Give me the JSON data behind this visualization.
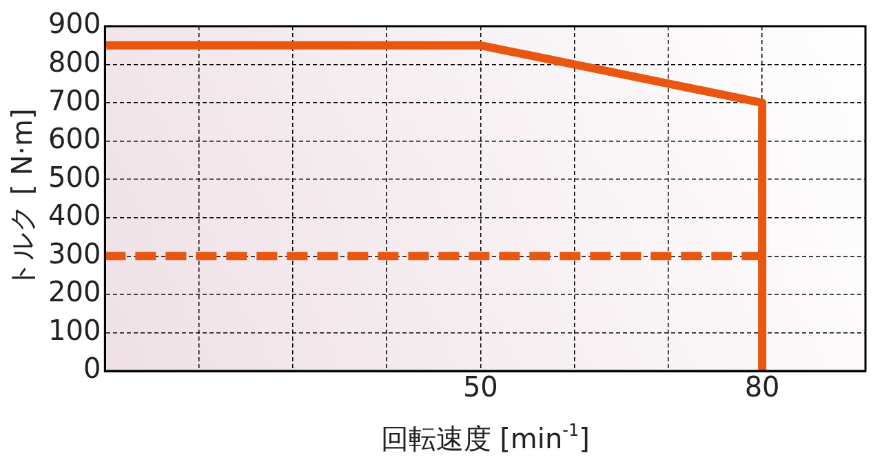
{
  "chart_data": {
    "type": "line",
    "xlabel": "回転速度 [min$^{-1}$]",
    "ylabel": "トルク [ N·m]",
    "xlim": [
      10,
      91
    ],
    "xticks": [
      {
        "value": 20,
        "label": null
      },
      {
        "value": 30,
        "label": null
      },
      {
        "value": 40,
        "label": null
      },
      50,
      {
        "value": 60,
        "label": null
      },
      {
        "value": 70,
        "label": null
      },
      80
    ],
    "ylim": [
      0,
      900
    ],
    "yticks": [
      0,
      100,
      200,
      300,
      400,
      500,
      600,
      700,
      800,
      900
    ],
    "grid": true,
    "legend": false,
    "marker": "none",
    "series": [
      {
        "x": [
          10,
          50,
          80,
          80
        ],
        "values": [
          850,
          850,
          700,
          0
        ],
        "color": "#e8560f",
        "line_style": "solid"
      },
      {
        "x": [
          10,
          80
        ],
        "values": [
          300,
          300
        ],
        "color": "#e8560f",
        "line_style": "dashed"
      }
    ]
  }
}
